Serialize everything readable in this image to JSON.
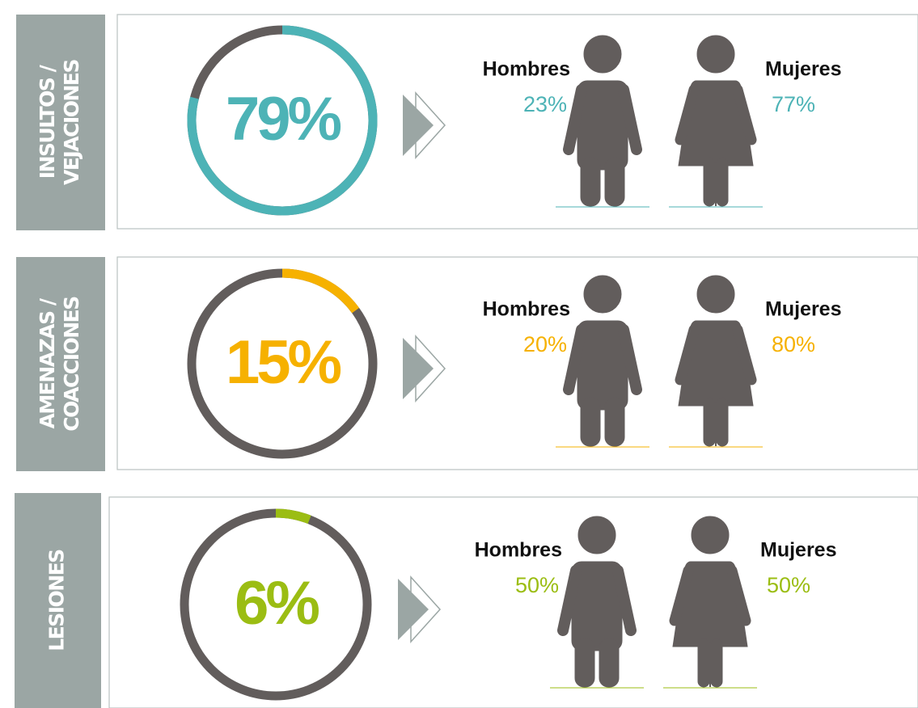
{
  "chart_data": [
    {
      "type": "donut",
      "label_lines": [
        "INSULTOS /",
        "VEJACIONES"
      ],
      "value": 79,
      "value_label": "79%",
      "color": "#4db3b6",
      "men": {
        "label": "Hombres",
        "value": 23,
        "value_label": "23%"
      },
      "women": {
        "label": "Mujeres",
        "value": 77,
        "value_label": "77%"
      }
    },
    {
      "type": "donut",
      "label_lines": [
        "AMENAZAS /",
        "COACCIONES"
      ],
      "value": 15,
      "value_label": "15%",
      "color": "#f6b100",
      "men": {
        "label": "Hombres",
        "value": 20,
        "value_label": "20%"
      },
      "women": {
        "label": "Mujeres",
        "value": 80,
        "value_label": "80%"
      }
    },
    {
      "type": "donut",
      "label_lines": [
        "LESIONES"
      ],
      "value": 6,
      "value_label": "6%",
      "color": "#9bbd13",
      "men": {
        "label": "Hombres",
        "value": 50,
        "value_label": "50%"
      },
      "women": {
        "label": "Mujeres",
        "value": 50,
        "value_label": "50%"
      }
    }
  ]
}
